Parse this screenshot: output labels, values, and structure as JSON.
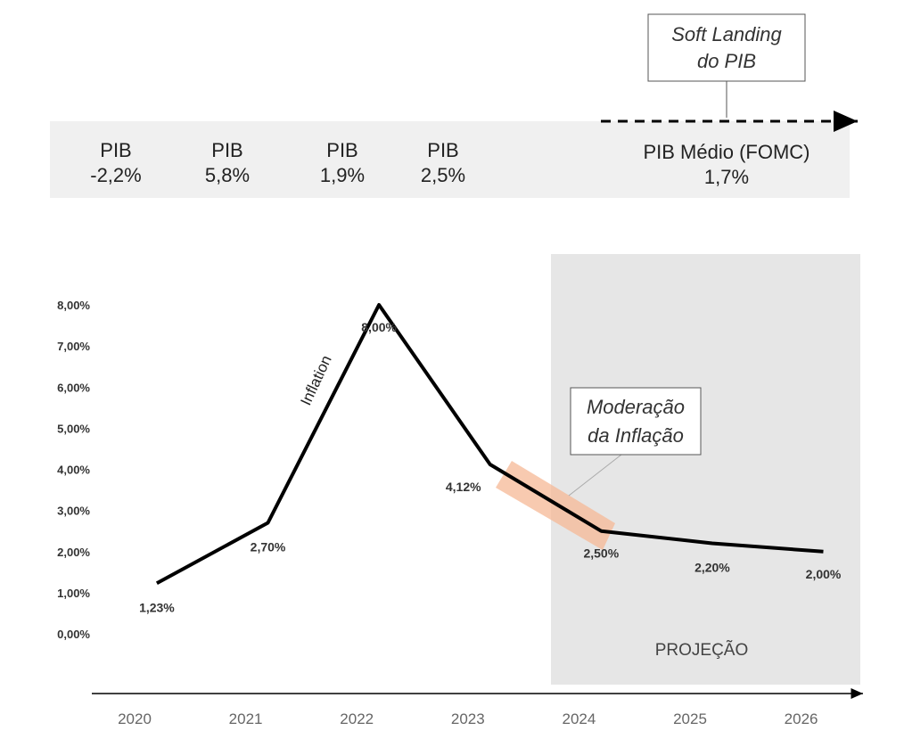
{
  "pib_band": {
    "items": [
      {
        "label": "PIB",
        "value": "-2,2%"
      },
      {
        "label": "PIB",
        "value": "5,8%"
      },
      {
        "label": "PIB",
        "value": "1,9%"
      },
      {
        "label": "PIB",
        "value": "2,5%"
      }
    ],
    "fomc": {
      "label": "PIB Médio (FOMC)",
      "value": "1,7%"
    }
  },
  "callouts": {
    "soft_landing": [
      "Soft Landing",
      "do PIB"
    ],
    "moderation": [
      "Moderação",
      "da Inflação"
    ]
  },
  "annotations": {
    "inflation_label": "Inflation",
    "projection_label": "PROJEÇÃO"
  },
  "colors": {
    "band": "#f0f0f0",
    "projection": "#e6e6e6",
    "line": "#000000",
    "highlight": "#f5b896"
  },
  "chart_data": {
    "type": "line",
    "title": "",
    "xlabel": "",
    "ylabel": "",
    "categories": [
      "2020",
      "2021",
      "2022",
      "2023",
      "2024",
      "2025",
      "2026"
    ],
    "y_ticks": [
      "0,00%",
      "1,00%",
      "2,00%",
      "3,00%",
      "4,00%",
      "5,00%",
      "6,00%",
      "7,00%",
      "8,00%"
    ],
    "ylim": [
      0,
      8
    ],
    "grid": false,
    "projection_from": "2024",
    "series": [
      {
        "name": "Inflation",
        "points": [
          {
            "x": 2020.2,
            "y": 1.23,
            "label": "1,23%"
          },
          {
            "x": 2021.2,
            "y": 2.7,
            "label": "2,70%"
          },
          {
            "x": 2022.2,
            "y": 8.0,
            "label": "8,00%"
          },
          {
            "x": 2023.2,
            "y": 4.12,
            "label": "4,12%"
          },
          {
            "x": 2024.2,
            "y": 2.5,
            "label": "2,50%"
          },
          {
            "x": 2025.2,
            "y": 2.2,
            "label": "2,20%"
          },
          {
            "x": 2026.2,
            "y": 2.0,
            "label": "2,00%"
          }
        ]
      }
    ]
  }
}
